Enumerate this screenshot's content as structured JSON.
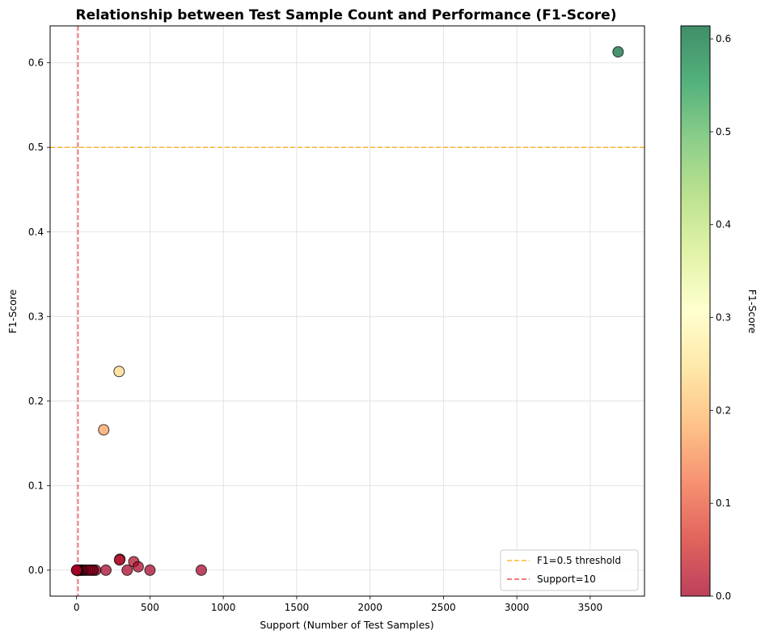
{
  "chart_data": {
    "type": "scatter",
    "title": "Relationship between Test Sample Count and Performance (F1-Score)",
    "xlabel": "Support (Number of Test Samples)",
    "ylabel": "F1-Score",
    "xlim": [
      -180,
      3870
    ],
    "ylim": [
      -0.0307,
      0.6437
    ],
    "xticks": [
      0,
      500,
      1000,
      1500,
      2000,
      2500,
      3000,
      3500
    ],
    "yticks": [
      0.0,
      0.1,
      0.2,
      0.3,
      0.4,
      0.5,
      0.6
    ],
    "grid": true,
    "colorbar": {
      "label": "F1-Score",
      "range": [
        0.0,
        0.614
      ],
      "ticks": [
        0.0,
        0.1,
        0.2,
        0.3,
        0.4,
        0.5,
        0.6
      ],
      "colormap": "RdYlGn"
    },
    "reference_lines": [
      {
        "orientation": "horizontal",
        "value": 0.5,
        "label": "F1=0.5 threshold",
        "color": "#ffa500",
        "style": "dashed"
      },
      {
        "orientation": "vertical",
        "value": 10,
        "label": "Support=10",
        "color": "#e8282b",
        "style": "dashed"
      }
    ],
    "legend_position": "lower-right",
    "points": [
      {
        "x": 3690,
        "y": 0.613
      },
      {
        "x": 290,
        "y": 0.235
      },
      {
        "x": 185,
        "y": 0.166
      },
      {
        "x": 295,
        "y": 0.013
      },
      {
        "x": 293,
        "y": 0.012
      },
      {
        "x": 390,
        "y": 0.01
      },
      {
        "x": 420,
        "y": 0.004
      },
      {
        "x": 345,
        "y": 0.0
      },
      {
        "x": 500,
        "y": 0.0
      },
      {
        "x": 850,
        "y": 0.0
      },
      {
        "x": 200,
        "y": 0.0
      },
      {
        "x": 130,
        "y": 0.0
      },
      {
        "x": 115,
        "y": 0.0
      },
      {
        "x": 105,
        "y": 0.0
      },
      {
        "x": 90,
        "y": 0.0
      },
      {
        "x": 75,
        "y": 0.0
      },
      {
        "x": 60,
        "y": 0.0
      },
      {
        "x": 45,
        "y": 0.0
      },
      {
        "x": 35,
        "y": 0.0
      },
      {
        "x": 25,
        "y": 0.0
      },
      {
        "x": 15,
        "y": 0.0
      },
      {
        "x": 8,
        "y": 0.0
      },
      {
        "x": 5,
        "y": 0.0
      },
      {
        "x": 2,
        "y": 0.0
      },
      {
        "x": 0,
        "y": 0.0
      }
    ]
  }
}
